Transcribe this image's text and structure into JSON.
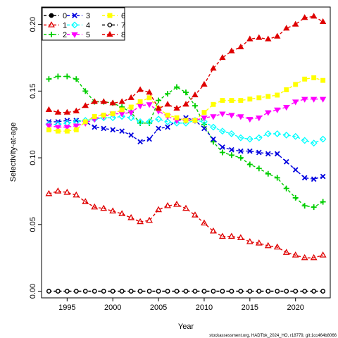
{
  "chart_data": {
    "type": "line",
    "xlabel": "Year",
    "ylabel": "Selectivity-at-age",
    "caption": "stockassessment.org, HADTbk_2024_HO, r18779, git:1cc464b8066",
    "xlim": [
      1992.2,
      2023.8
    ],
    "ylim": [
      -0.005,
      0.213
    ],
    "x_ticks": [
      1995,
      2000,
      2005,
      2010,
      2015,
      2020
    ],
    "y_ticks": [
      0.0,
      0.05,
      0.1,
      0.15,
      0.2
    ],
    "y_tick_labels": [
      "0.00",
      "0.05",
      "0.10",
      "0.15",
      "0.20"
    ],
    "legend_position": "top-left",
    "x": [
      1993,
      1994,
      1995,
      1996,
      1997,
      1998,
      1999,
      2000,
      2001,
      2002,
      2003,
      2004,
      2005,
      2006,
      2007,
      2008,
      2009,
      2010,
      2011,
      2012,
      2013,
      2014,
      2015,
      2016,
      2017,
      2018,
      2019,
      2020,
      2021,
      2022,
      2023
    ],
    "series": [
      {
        "name": "0",
        "color": "#000000",
        "marker": "circle-filled",
        "values": [
          0,
          0,
          0,
          0,
          0,
          0,
          0,
          0,
          0,
          0,
          0,
          0,
          0,
          0,
          0,
          0,
          0,
          0,
          0,
          0,
          0,
          0,
          0,
          0,
          0,
          0,
          0,
          0,
          0,
          0,
          0
        ]
      },
      {
        "name": "1",
        "color": "#DF0000",
        "marker": "triangle-open",
        "values": [
          0.073,
          0.075,
          0.074,
          0.072,
          0.067,
          0.063,
          0.062,
          0.06,
          0.058,
          0.055,
          0.052,
          0.053,
          0.061,
          0.064,
          0.065,
          0.062,
          0.057,
          0.051,
          0.045,
          0.041,
          0.041,
          0.04,
          0.037,
          0.036,
          0.034,
          0.033,
          0.029,
          0.027,
          0.025,
          0.025,
          0.027
        ]
      },
      {
        "name": "2",
        "color": "#00CD00",
        "marker": "plus",
        "values": [
          0.159,
          0.161,
          0.161,
          0.159,
          0.15,
          0.142,
          0.142,
          0.141,
          0.138,
          0.134,
          0.126,
          0.126,
          0.143,
          0.148,
          0.153,
          0.149,
          0.139,
          0.125,
          0.112,
          0.104,
          0.102,
          0.1,
          0.095,
          0.092,
          0.088,
          0.085,
          0.077,
          0.07,
          0.064,
          0.063,
          0.067
        ]
      },
      {
        "name": "3",
        "color": "#0000DF",
        "marker": "x",
        "values": [
          0.127,
          0.127,
          0.128,
          0.128,
          0.127,
          0.123,
          0.122,
          0.121,
          0.12,
          0.117,
          0.112,
          0.114,
          0.122,
          0.123,
          0.128,
          0.13,
          0.128,
          0.122,
          0.114,
          0.108,
          0.106,
          0.105,
          0.105,
          0.104,
          0.103,
          0.103,
          0.097,
          0.091,
          0.085,
          0.084,
          0.086
        ]
      },
      {
        "name": "4",
        "color": "#00FFFF",
        "marker": "diamond-open",
        "values": [
          0.125,
          0.125,
          0.126,
          0.127,
          0.128,
          0.129,
          0.13,
          0.13,
          0.131,
          0.13,
          0.127,
          0.127,
          0.129,
          0.127,
          0.126,
          0.126,
          0.128,
          0.127,
          0.123,
          0.12,
          0.118,
          0.115,
          0.114,
          0.115,
          0.118,
          0.118,
          0.117,
          0.116,
          0.113,
          0.111,
          0.114
        ]
      },
      {
        "name": "5",
        "color": "#FF00FF",
        "marker": "triangle-down-filled",
        "values": [
          0.124,
          0.123,
          0.123,
          0.124,
          0.126,
          0.129,
          0.131,
          0.133,
          0.133,
          0.134,
          0.139,
          0.14,
          0.135,
          0.131,
          0.128,
          0.128,
          0.128,
          0.13,
          0.131,
          0.133,
          0.132,
          0.131,
          0.129,
          0.13,
          0.134,
          0.136,
          0.138,
          0.142,
          0.144,
          0.144,
          0.144
        ]
      },
      {
        "name": "6",
        "color": "#FFFF00",
        "marker": "square-filled",
        "values": [
          0.121,
          0.12,
          0.12,
          0.121,
          0.127,
          0.131,
          0.132,
          0.133,
          0.136,
          0.138,
          0.142,
          0.145,
          0.137,
          0.132,
          0.13,
          0.128,
          0.128,
          0.134,
          0.14,
          0.143,
          0.143,
          0.143,
          0.144,
          0.145,
          0.146,
          0.147,
          0.151,
          0.155,
          0.159,
          0.16,
          0.158
        ]
      },
      {
        "name": "7",
        "color": "#000000",
        "marker": "circle-open",
        "values": [
          0,
          0,
          0,
          0,
          0,
          0,
          0,
          0,
          0,
          0,
          0,
          0,
          0,
          0,
          0,
          0,
          0,
          0,
          0,
          0,
          0,
          0,
          0,
          0,
          0,
          0,
          0,
          0,
          0,
          0,
          0
        ]
      },
      {
        "name": "8",
        "color": "#DF0000",
        "marker": "triangle-filled",
        "values": [
          0.136,
          0.134,
          0.134,
          0.135,
          0.139,
          0.142,
          0.142,
          0.141,
          0.142,
          0.145,
          0.151,
          0.149,
          0.137,
          0.14,
          0.137,
          0.14,
          0.147,
          0.155,
          0.167,
          0.175,
          0.18,
          0.183,
          0.189,
          0.19,
          0.189,
          0.191,
          0.197,
          0.2,
          0.205,
          0.206,
          0.202
        ]
      }
    ]
  }
}
